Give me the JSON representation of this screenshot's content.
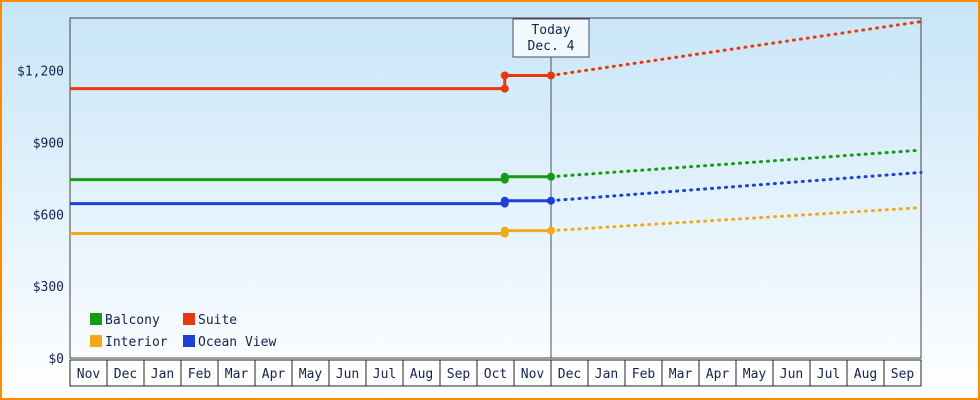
{
  "chart_data": {
    "type": "line",
    "title": "",
    "today_label": [
      "Today",
      "Dec. 4"
    ],
    "y_ticks": [
      "$0",
      "$300",
      "$600",
      "$900",
      "$1,200"
    ],
    "y_tick_values": [
      0,
      300,
      600,
      900,
      1200
    ],
    "ylim": [
      0,
      1420
    ],
    "x_months": [
      "Nov",
      "Dec",
      "Jan",
      "Feb",
      "Mar",
      "Apr",
      "May",
      "Jun",
      "Jul",
      "Aug",
      "Sep",
      "Oct",
      "Nov",
      "Dec",
      "Jan",
      "Feb",
      "Mar",
      "Apr",
      "May",
      "Jun",
      "Jul",
      "Aug",
      "Sep"
    ],
    "x_max": 23,
    "today_x": 13,
    "step_x": 11.75,
    "grid": false,
    "legend_position": "bottom-left",
    "series": [
      {
        "name": "Balcony",
        "color": "#149b14",
        "base": 745,
        "current": 757,
        "forecast_end": 868
      },
      {
        "name": "Suite",
        "color": "#e8380f",
        "base": 1125,
        "current": 1180,
        "forecast_end": 1405
      },
      {
        "name": "Interior",
        "color": "#f3a81b",
        "base": 520,
        "current": 532,
        "forecast_end": 628
      },
      {
        "name": "Ocean View",
        "color": "#1c3fd6",
        "base": 645,
        "current": 657,
        "forecast_end": 775
      }
    ],
    "legend": [
      [
        "Balcony",
        "Suite"
      ],
      [
        "Interior",
        "Ocean View"
      ]
    ]
  },
  "style": {
    "border_color": "#ff8a00",
    "bg_top": "#c7e5f8",
    "bg_bottom": "#ffffff",
    "axis_color": "#444444",
    "cell_stroke": "#222222",
    "text_color": "#15234d",
    "today_line_color": "#44506a",
    "today_box_fill": "#f2f9fe"
  }
}
